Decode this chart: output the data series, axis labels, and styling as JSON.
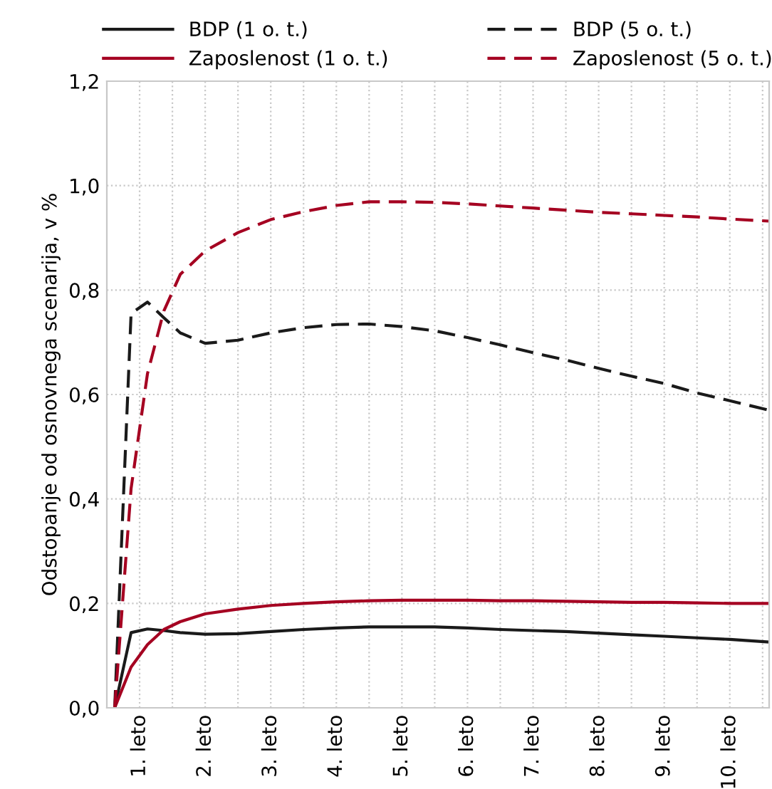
{
  "chart_data": {
    "type": "line",
    "ylabel": "Odstopanje od osnovnega scenarija, v %",
    "x": [
      0.12,
      0.37,
      0.62,
      0.87,
      1.12,
      1.5,
      2,
      2.5,
      3,
      3.5,
      4,
      4.5,
      5,
      5.5,
      6,
      6.5,
      7,
      7.5,
      8,
      8.5,
      9,
      9.5,
      10.1
    ],
    "series": [
      {
        "name": "BDP (1 o. t.)",
        "color": "#1a1a1a",
        "line_style": "solid",
        "values": [
          0,
          0.144,
          0.151,
          0.148,
          0.144,
          0.141,
          0.142,
          0.146,
          0.15,
          0.153,
          0.155,
          0.155,
          0.155,
          0.153,
          0.15,
          0.148,
          0.146,
          0.143,
          0.14,
          0.137,
          0.134,
          0.131,
          0.126
        ]
      },
      {
        "name": "Zaposlenost (1 o. t.)",
        "color": "#a50021",
        "line_style": "solid",
        "values": [
          0,
          0.078,
          0.121,
          0.15,
          0.165,
          0.18,
          0.189,
          0.196,
          0.2,
          0.203,
          0.205,
          0.206,
          0.206,
          0.206,
          0.205,
          0.205,
          0.204,
          0.203,
          0.202,
          0.202,
          0.201,
          0.2,
          0.2
        ]
      },
      {
        "name": "BDP (5 o. t.)",
        "color": "#1a1a1a",
        "line_style": "dashed",
        "values": [
          0,
          0.755,
          0.777,
          0.747,
          0.718,
          0.698,
          0.704,
          0.718,
          0.728,
          0.734,
          0.735,
          0.73,
          0.722,
          0.709,
          0.695,
          0.68,
          0.666,
          0.65,
          0.635,
          0.621,
          0.603,
          0.588,
          0.57
        ]
      },
      {
        "name": "Zaposlenost (5 o. t.)",
        "color": "#a50021",
        "line_style": "dashed",
        "values": [
          0,
          0.42,
          0.64,
          0.76,
          0.83,
          0.875,
          0.91,
          0.935,
          0.95,
          0.962,
          0.969,
          0.969,
          0.968,
          0.965,
          0.961,
          0.957,
          0.953,
          0.949,
          0.946,
          0.943,
          0.94,
          0.936,
          0.932
        ]
      }
    ],
    "xlim": [
      0,
      10.1
    ],
    "xticks": [
      {
        "value": 0.5,
        "label": "1. leto"
      },
      {
        "value": 1,
        "label": null
      },
      {
        "value": 1.5,
        "label": "2. leto"
      },
      {
        "value": 2,
        "label": null
      },
      {
        "value": 2.5,
        "label": "3. leto"
      },
      {
        "value": 3,
        "label": null
      },
      {
        "value": 3.5,
        "label": "4. leto"
      },
      {
        "value": 4,
        "label": null
      },
      {
        "value": 4.5,
        "label": "5. leto"
      },
      {
        "value": 5,
        "label": null
      },
      {
        "value": 5.5,
        "label": "6. leto"
      },
      {
        "value": 6,
        "label": null
      },
      {
        "value": 6.5,
        "label": "7. leto"
      },
      {
        "value": 7,
        "label": null
      },
      {
        "value": 7.5,
        "label": "8. leto"
      },
      {
        "value": 8,
        "label": null
      },
      {
        "value": 8.5,
        "label": "9. leto"
      },
      {
        "value": 9,
        "label": null
      },
      {
        "value": 9.5,
        "label": "10. leto"
      },
      {
        "value": 10,
        "label": null
      }
    ],
    "ylim": [
      0,
      1.2
    ],
    "yticks": [
      {
        "value": 0,
        "label": "0,0"
      },
      {
        "value": 0.2,
        "label": "0,2"
      },
      {
        "value": 0.4,
        "label": "0,4"
      },
      {
        "value": 0.6,
        "label": "0,6"
      },
      {
        "value": 0.8,
        "label": "0,8"
      },
      {
        "value": 1.0,
        "label": "1,0"
      },
      {
        "value": 1.2,
        "label": "1,2"
      }
    ],
    "grid": true,
    "legend": "top",
    "marker": "none"
  }
}
